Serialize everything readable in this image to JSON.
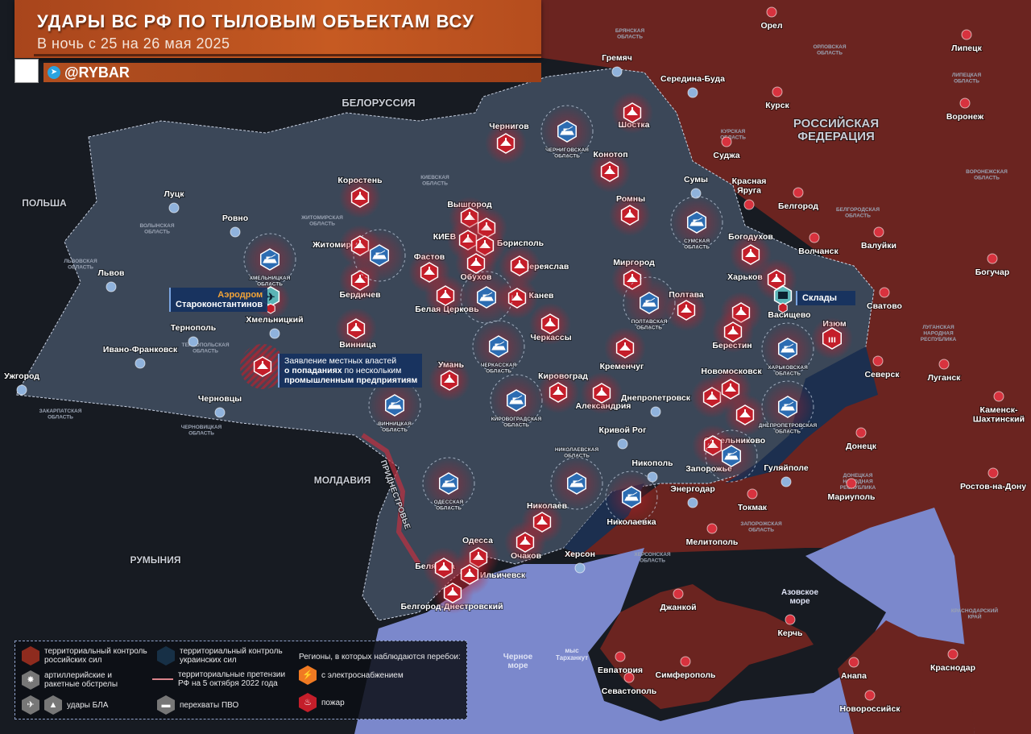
{
  "header": {
    "title": "УДАРЫ ВС РФ ПО ТЫЛОВЫМ ОБЪЕКТАМ ВСУ",
    "subtitle": "В ночь с 25 на 26 мая 2025",
    "handle": "@RYBAR"
  },
  "colors": {
    "russia": "#6b2420",
    "ukraine": "#3b4758",
    "ukraine_control": "#1c2f4f",
    "sea": "#7b88cc",
    "strike": "#c41e2a",
    "pvo": "#2c6cb2",
    "header": "#c0551f",
    "energy": "#f07a22"
  },
  "countries": [
    "БЕЛОРУССИЯ",
    "ПОЛЬША",
    "МОЛДАВИЯ",
    "РУМЫНИЯ",
    "РОССИЙСКАЯ\nФЕДЕРАЦИЯ",
    "Азовское\nморе",
    "Черное\nморе",
    "мыс\nТарханкут",
    "ПРИДНЕСТРОВЬЕ"
  ],
  "ua_cities": [
    "Гремяч",
    "Середина-Буда",
    "Чернигов",
    "Шостка",
    "Конотоп",
    "Коростень",
    "Вышгород",
    "КИЕВ",
    "Борисполь",
    "Фастов",
    "Переяслав",
    "Обухов",
    "Луцк",
    "Ровно",
    "Житомир",
    "Бердичев",
    "Львов",
    "Хмельницкий",
    "Тернополь",
    "Ивано-Франковск",
    "Ужгород",
    "Черновцы",
    "Винница",
    "Белая Церковь",
    "Канев",
    "Черкассы",
    "Умань",
    "Кировоград",
    "Александрия",
    "Ромны",
    "Миргород",
    "Полтава",
    "Кременчуг",
    "Сумы",
    "Богодухов",
    "Харьков",
    "Васищево",
    "Изюм",
    "Берестин",
    "Новомосковск",
    "Днепропетровск",
    "Синельниково",
    "Кривой Рог",
    "Никополь",
    "Запорожье",
    "Гуляйполе",
    "Николаев",
    "Николаевка",
    "Очаков",
    "Одесса",
    "Беляевка",
    "Ильичевск",
    "Белгород-Днестровский",
    "Херсон",
    "Энергодар"
  ],
  "ru_cities": [
    "Орел",
    "Липецк",
    "Курск",
    "Воронеж",
    "Суджа",
    "Красная\nЯруга",
    "Белгород",
    "Валуйки",
    "Волчанск",
    "Богучар",
    "Сватово",
    "Северск",
    "Луганск",
    "Каменск-\nШахтинский",
    "Донецк",
    "Ростов-на-Дону",
    "Мариуполь",
    "Токмак",
    "Мелитополь",
    "Джанкой",
    "Керчь",
    "Евпатория",
    "Симферополь",
    "Севастополь",
    "Анапа",
    "Краснодар",
    "Новороссийск"
  ],
  "oblasts": [
    "БРЯНСКАЯ\nОБЛАСТЬ",
    "ОРЛОВСКАЯ\nОБЛАСТЬ",
    "ЛИПЕЦКАЯ\nОБЛАСТЬ",
    "КУРСКАЯ\nОБЛАСТЬ",
    "ВОРОНЕЖСКАЯ\nОБЛАСТЬ",
    "БЕЛГОРОДСКАЯ\nОБЛАСТЬ",
    "КИЕВСКАЯ\nОБЛАСТЬ",
    "ЖИТОМИРСКАЯ\nОБЛАСТЬ",
    "ВОЛЫНСКАЯ\nОБЛАСТЬ",
    "ЛЬВОВСКАЯ\nОБЛАСТЬ",
    "ТЕРНОПОЛЬСКАЯ\nОБЛАСТЬ",
    "ЗАКАРПАТСКАЯ\nОБЛАСТЬ",
    "ЧЕРНОВИЦКАЯ\nОБЛАСТЬ",
    "ЛУГАНСКАЯ\nНАРОДНАЯ\nРЕСПУБЛИКА",
    "ДОНЕЦКАЯ\nНАРОДНАЯ\nРЕСПУБЛИКА",
    "ЗАПОРОЖСКАЯ\nОБЛАСТЬ",
    "ХЕРСОНСКАЯ\nОБЛАСТЬ",
    "КРАСНОДАРСКИЙ\nКРАЙ"
  ],
  "pvo_regions": [
    "ЧЕРНИГОВСКАЯ\nОБЛАСТЬ",
    "ХМЕЛЬНИЦКАЯ\nОБЛАСТЬ",
    "",
    "СУМСКАЯ\nОБЛАСТЬ",
    "",
    "ЧЕРКАССКАЯ\nОБЛАСТЬ",
    "ПОЛТАВСКАЯ\nОБЛАСТЬ",
    "ВИННИЦКАЯ\nОБЛАСТЬ",
    "КИРОВОГРАДСКАЯ\nОБЛАСТЬ",
    "ХАРЬКОВСКАЯ\nОБЛАСТЬ",
    "ДНЕПРОПЕТРОВСКАЯ\nОБЛАСТЬ",
    "",
    "ОДЕССКАЯ\nОБЛАСТЬ",
    "НИКОЛАЕВСКАЯ\nОБЛАСТЬ",
    ""
  ],
  "annotations": {
    "airfield_label": "Аэродром",
    "airfield_name": "Староконстантинов",
    "statement": {
      "l1": "Заявление местных властей",
      "l2_bold": "о попаданиях",
      "l2_rest": " по нескольким",
      "l3_bold": "промышленным предприятиям"
    },
    "warehouses": "Склады"
  },
  "legend": {
    "ru_control": "территориальный контроль российских сил",
    "ua_control": "территориальный контроль украинских сил",
    "artillery": "артиллерийские и ракетные обстрелы",
    "claims": "территориальные претензии РФ на 5 октября 2022 года",
    "drones": "удары БЛА",
    "pvo": "перехваты ПВО",
    "outages_title": "Регионы, в которых наблюдаются перебои:",
    "power": "с электроснабжением",
    "fire": "пожар"
  },
  "icons": {
    "strike": "drone-strike-icon",
    "pvo": "air-defense-intercept-icon",
    "airfield": "airplane-icon",
    "warehouse": "warehouse-icon",
    "artillery": "rocket-icon",
    "power": "lightning-icon",
    "fire": "fire-icon",
    "telegram": "telegram-icon",
    "qr": "qr-code-icon"
  }
}
